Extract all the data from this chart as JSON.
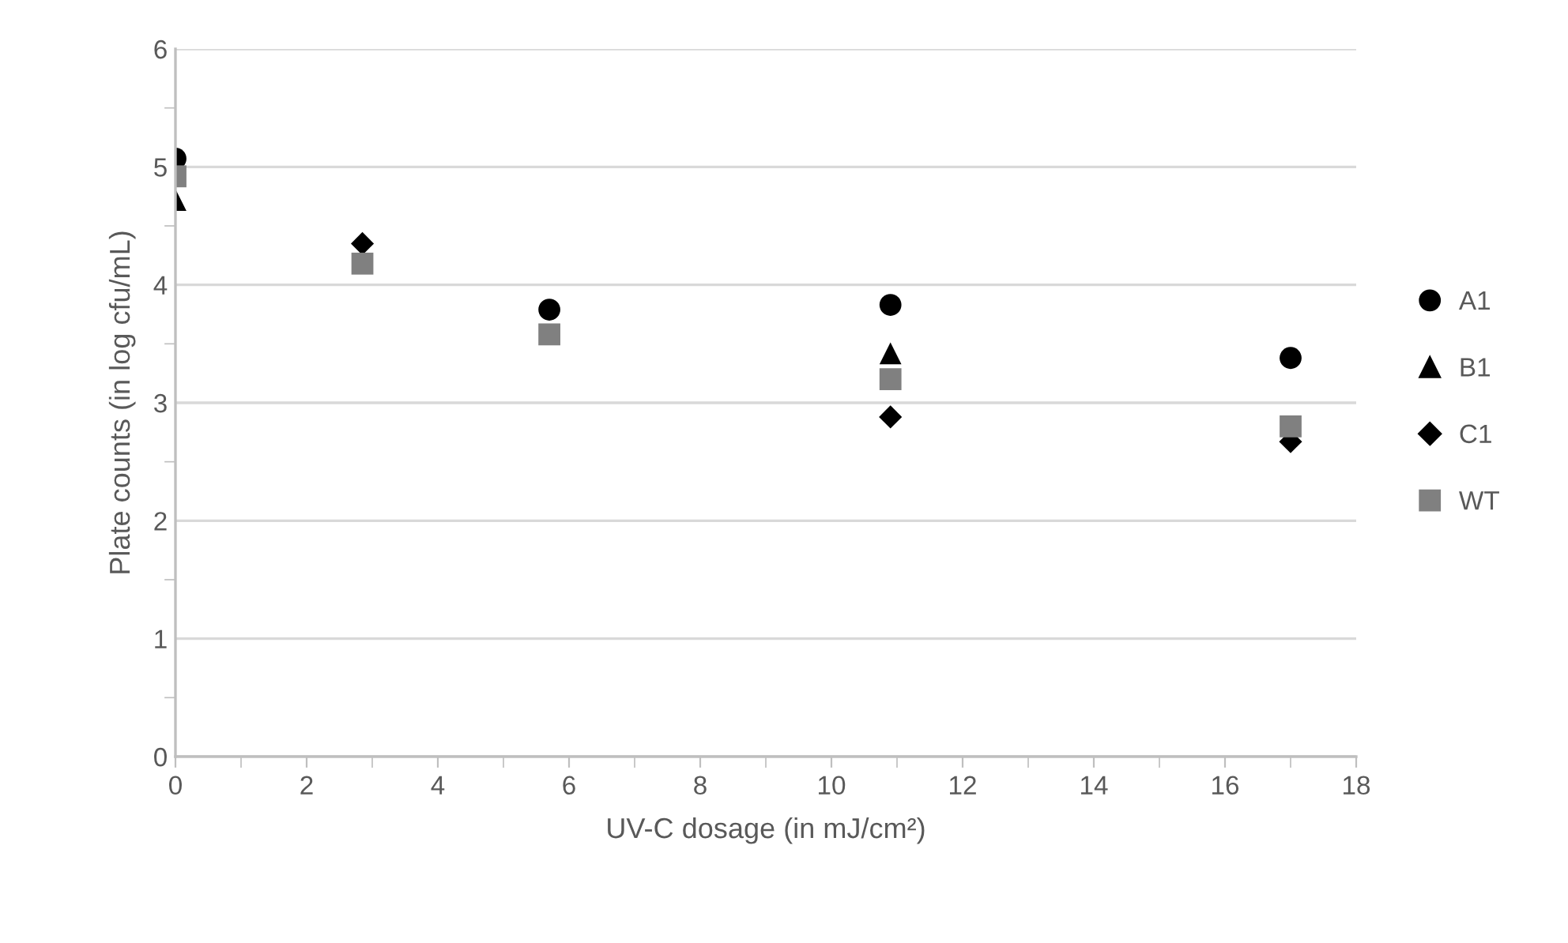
{
  "chart_data": {
    "type": "scatter",
    "xlabel": "UV-C dosage (in mJ/cm²)",
    "ylabel": "Plate counts (in log cfu/mL)",
    "x": [
      0,
      2.85,
      5.7,
      10.9,
      17
    ],
    "series": [
      {
        "name": "A1",
        "color": "#000000",
        "marker": "circle",
        "values": [
          5.07,
          null,
          3.79,
          3.83,
          3.38
        ]
      },
      {
        "name": "B1",
        "color": "#000000",
        "marker": "triangle",
        "values": [
          4.72,
          null,
          null,
          3.42,
          null
        ]
      },
      {
        "name": "C1",
        "color": "#000000",
        "marker": "diamond",
        "values": [
          null,
          4.35,
          null,
          2.88,
          2.67
        ]
      },
      {
        "name": "WT",
        "color": "#808080",
        "marker": "square",
        "values": [
          4.92,
          4.18,
          3.58,
          3.2,
          2.8
        ]
      }
    ],
    "xlim": [
      0,
      18
    ],
    "ylim": [
      0,
      6
    ],
    "xticks": [
      0,
      {
        "value": 1,
        "label": null
      },
      2,
      {
        "value": 3,
        "label": null
      },
      4,
      {
        "value": 5,
        "label": null
      },
      6,
      {
        "value": 7,
        "label": null
      },
      8,
      {
        "value": 9,
        "label": null
      },
      10,
      {
        "value": 11,
        "label": null
      },
      12,
      {
        "value": 13,
        "label": null
      },
      14,
      {
        "value": 15,
        "label": null
      },
      16,
      {
        "value": 17,
        "label": null
      },
      18
    ],
    "yticks": [
      0,
      {
        "value": 0.5,
        "label": null
      },
      1,
      {
        "value": 1.5,
        "label": null
      },
      2,
      {
        "value": 2.5,
        "label": null
      },
      3,
      {
        "value": 3.5,
        "label": null
      },
      4,
      {
        "value": 4.5,
        "label": null
      },
      5,
      {
        "value": 5.5,
        "label": null
      },
      6
    ],
    "grid": "y",
    "legend": "right"
  }
}
